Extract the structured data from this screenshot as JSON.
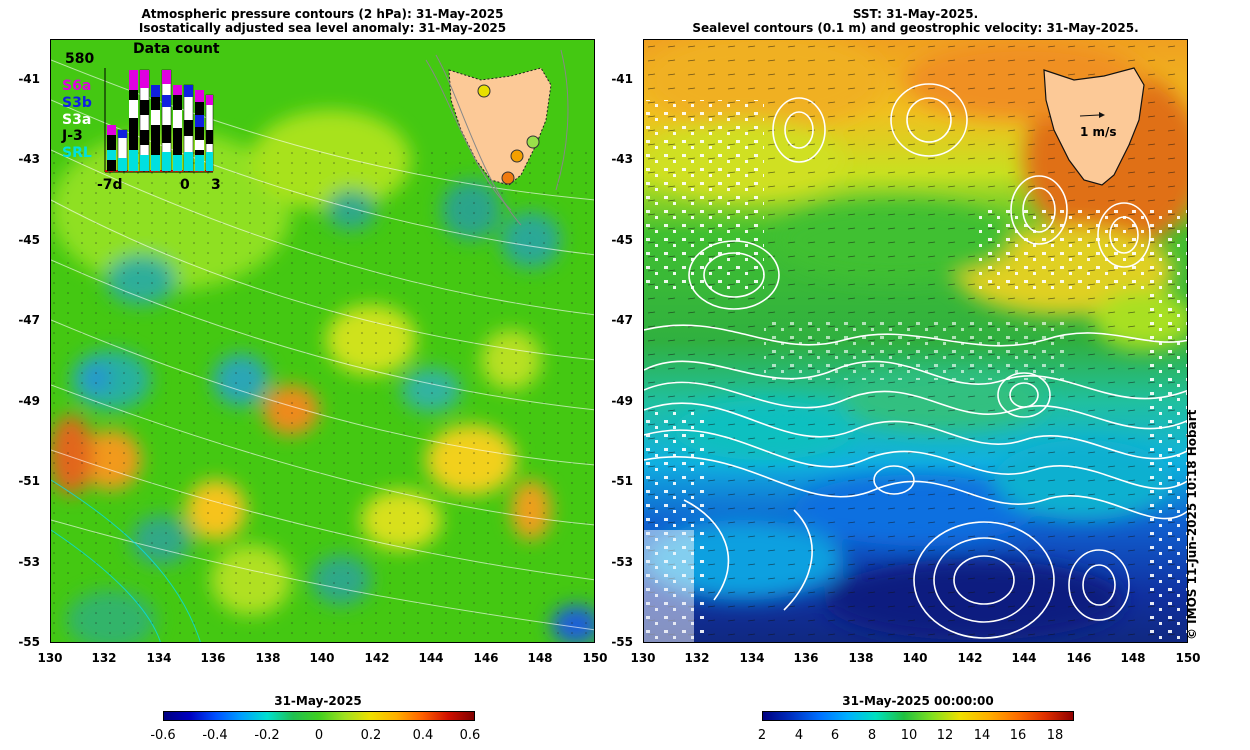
{
  "left_panel": {
    "title_line1": "Atmospheric pressure contours (2 hPa): 31-May-2025",
    "title_line2": "Isostatically adjusted sea level anomaly: 31-May-2025",
    "y_ticks": [
      "-41",
      "-43",
      "-45",
      "-47",
      "-49",
      "-51",
      "-53",
      "-55"
    ],
    "x_ticks": [
      "130",
      "132",
      "134",
      "136",
      "138",
      "140",
      "142",
      "144",
      "146",
      "148",
      "150"
    ],
    "inset": {
      "title": "Data count",
      "count": "580",
      "missions": [
        {
          "label": "S6a",
          "color": "#e000e0"
        },
        {
          "label": "S3b",
          "color": "#1020e0"
        },
        {
          "label": "S3a",
          "color": "#ffffff"
        },
        {
          "label": "J-3",
          "color": "#000000"
        },
        {
          "label": "SRL",
          "color": "#00e0e0"
        }
      ],
      "x_labels": [
        "-7d",
        "0",
        "3"
      ]
    },
    "colorbar": {
      "date": "31-May-2025",
      "labels": [
        "-0.6",
        "-0.4",
        "-0.2",
        "0",
        "0.2",
        "0.4",
        "0.6"
      ]
    }
  },
  "right_panel": {
    "title_line1": "SST: 31-May-2025.",
    "title_line2": "Sealevel contours (0.1 m) and geostrophic velocity: 31-May-2025.",
    "y_ticks": [
      "-41",
      "-43",
      "-45",
      "-47",
      "-49",
      "-51",
      "-53",
      "-55"
    ],
    "x_ticks": [
      "130",
      "132",
      "134",
      "136",
      "138",
      "140",
      "142",
      "144",
      "146",
      "148",
      "150"
    ],
    "velocity_scale_label": "1 m/s",
    "colorbar": {
      "date": "31-May-2025 00:00:00",
      "labels": [
        "2",
        "4",
        "6",
        "8",
        "10",
        "12",
        "14",
        "16",
        "18"
      ]
    }
  },
  "credit": "© IMOS 11-Jun-2025 10:18 Hobart",
  "colors": {
    "land": "#fcc997",
    "ssl_green": "#33cc11",
    "sst_orange": "#f09020",
    "sst_blue": "#1040c0"
  }
}
